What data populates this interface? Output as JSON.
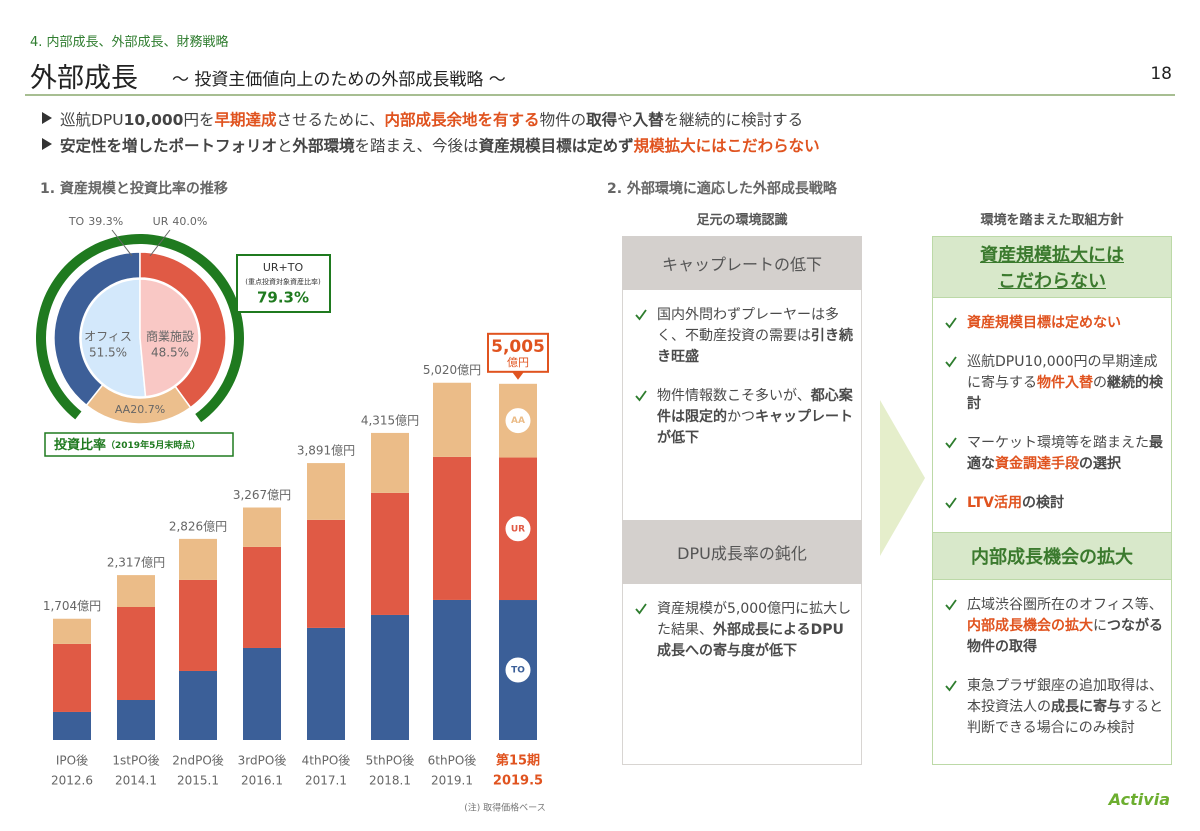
{
  "header": {
    "section": "4. 内部成長、外部成長、財務戦略",
    "title": "外部成長",
    "subtitle": "～ 投資主価値向上のための外部成長戦略 ～",
    "page": "18"
  },
  "bullets": [
    {
      "segments": [
        {
          "text": "巡航DPU",
          "style": "normal"
        },
        {
          "text": "10,000",
          "style": "bold"
        },
        {
          "text": "円を",
          "style": "normal"
        },
        {
          "text": "早期達成",
          "style": "accent"
        },
        {
          "text": "させるために、",
          "style": "normal"
        },
        {
          "text": "内部成長余地を有する",
          "style": "accent"
        },
        {
          "text": "物件の",
          "style": "normal"
        },
        {
          "text": "取得",
          "style": "bold"
        },
        {
          "text": "や",
          "style": "normal"
        },
        {
          "text": "入替",
          "style": "bold"
        },
        {
          "text": "を継続的に検討する",
          "style": "normal"
        }
      ]
    },
    {
      "segments": [
        {
          "text": "安定性を増したポートフォリオ",
          "style": "bold"
        },
        {
          "text": "と",
          "style": "normal"
        },
        {
          "text": "外部環境",
          "style": "bold"
        },
        {
          "text": "を踏まえ、今後は",
          "style": "normal"
        },
        {
          "text": "資産規模目標は定めず",
          "style": "bold"
        },
        {
          "text": "規模拡大にはこだわらない",
          "style": "accent"
        }
      ]
    }
  ],
  "left_section_title": "1. 資産規模と投資比率の推移",
  "chart_data": [
    {
      "type": "donut",
      "inner": {
        "categories": [
          "オフィス",
          "商業施設"
        ],
        "values": [
          51.5,
          48.5
        ],
        "value_labels": [
          "51.5%",
          "48.5%"
        ],
        "colors": [
          "#d3e8fb",
          "#f9c8c5"
        ]
      },
      "outer": {
        "categories": [
          "TO",
          "UR",
          "AA"
        ],
        "values": [
          39.3,
          40.0,
          20.7
        ],
        "value_labels": [
          "39.3%",
          "40.0%",
          "20.7%"
        ],
        "colors": [
          "#3d5f98",
          "#e05a45",
          "#ecbf8d"
        ]
      },
      "highlight": {
        "label": "UR+TO",
        "sublabel": "(重点投資対象資産比率)",
        "value": 79.3,
        "value_label": "79.3%",
        "color": "#1f7a1f"
      },
      "caption": "投資比率",
      "caption_note": "（2019年5月末時点）"
    },
    {
      "type": "stacked_bar",
      "categories": [
        "IPO後",
        "1stPO後",
        "2ndPO後",
        "3rdPO後",
        "4thPO後",
        "5thPO後",
        "6thPO後",
        "第15期"
      ],
      "dates": [
        "2012.6",
        "2014.1",
        "2015.1",
        "2016.1",
        "2017.1",
        "2018.1",
        "2019.1",
        "2019.5"
      ],
      "series": [
        {
          "name": "TO",
          "color": "#3b5f98",
          "values": [
            394,
            562,
            970,
            1293,
            1575,
            1757,
            1968,
            1967
          ]
        },
        {
          "name": "UR",
          "color": "#e05a45",
          "values": [
            956,
            1307,
            1279,
            1420,
            1518,
            1715,
            2010,
            2002
          ]
        },
        {
          "name": "AA",
          "color": "#ebbc88",
          "values": [
            354,
            448,
            577,
            554,
            798,
            843,
            1042,
            1036
          ]
        }
      ],
      "totals": [
        1704,
        2317,
        2826,
        3267,
        3891,
        4315,
        5020,
        5005
      ],
      "total_labels": [
        "1,704億円",
        "2,317億円",
        "2,826億円",
        "3,267億円",
        "3,891億円",
        "4,315億円",
        "5,020億円",
        "5,005"
      ],
      "highlight_index": 7,
      "highlight_unit": "億円",
      "highlight_color": "#e0531f",
      "ylim": [
        0,
        6000
      ]
    }
  ],
  "right_section": {
    "title": "2. 外部環境に適応した外部成長戦略",
    "columns": [
      {
        "heading": "足元の環境認識",
        "boxes": [
          {
            "title_lines": [
              "キャップレートの低下"
            ],
            "underline": false,
            "items": [
              {
                "segments": [
                  {
                    "text": "国内外問わずプレーヤーは多く、不動産投資の需要は",
                    "style": "normal"
                  },
                  {
                    "text": "引き続き旺盛",
                    "style": "bold"
                  }
                ]
              },
              {
                "segments": [
                  {
                    "text": "物件情報数こそ多いが、",
                    "style": "normal"
                  },
                  {
                    "text": "都心案件は限定的",
                    "style": "bold"
                  },
                  {
                    "text": "かつ",
                    "style": "normal"
                  },
                  {
                    "text": "キャップレートが低下",
                    "style": "bold"
                  }
                ]
              }
            ]
          },
          {
            "title_lines": [
              "DPU成長率の鈍化"
            ],
            "underline": false,
            "items": [
              {
                "segments": [
                  {
                    "text": "資産規模が5,000億円に拡大した結果、",
                    "style": "normal"
                  },
                  {
                    "text": "外部成長によるDPU成長への寄与度が低下",
                    "style": "bold"
                  }
                ]
              }
            ]
          }
        ]
      },
      {
        "heading": "環境を踏まえた取組方針",
        "boxes": [
          {
            "title_lines": [
              "資産規模拡大には",
              "こだわらない"
            ],
            "underline": true,
            "items": [
              {
                "segments": [
                  {
                    "text": "資産規模目標は定めない",
                    "style": "accent"
                  }
                ]
              },
              {
                "segments": [
                  {
                    "text": "巡航DPU10,000円の早期達成に寄与する",
                    "style": "normal"
                  },
                  {
                    "text": "物件入替",
                    "style": "accent"
                  },
                  {
                    "text": "の",
                    "style": "normal"
                  },
                  {
                    "text": "継続的検討",
                    "style": "bold"
                  }
                ]
              },
              {
                "segments": [
                  {
                    "text": "マーケット環境等を踏まえた",
                    "style": "normal"
                  },
                  {
                    "text": "最適な",
                    "style": "bold"
                  },
                  {
                    "text": "資金調達手段",
                    "style": "accent"
                  },
                  {
                    "text": "の選択",
                    "style": "bold"
                  }
                ]
              },
              {
                "segments": [
                  {
                    "text": "LTV活用",
                    "style": "accent"
                  },
                  {
                    "text": "の検討",
                    "style": "bold"
                  }
                ]
              }
            ]
          },
          {
            "title_lines": [
              "内部成長機会の拡大"
            ],
            "underline": false,
            "items": [
              {
                "segments": [
                  {
                    "text": "広域渋谷圏所在のオフィス等、",
                    "style": "normal"
                  },
                  {
                    "text": "内部成長機会の拡大",
                    "style": "accent"
                  },
                  {
                    "text": "に",
                    "style": "normal"
                  },
                  {
                    "text": "つながる物件の取得",
                    "style": "bold"
                  }
                ]
              },
              {
                "segments": [
                  {
                    "text": "東急プラザ銀座の追加取得は、本投資法人の",
                    "style": "normal"
                  },
                  {
                    "text": "成長に寄与",
                    "style": "bold"
                  },
                  {
                    "text": "すると判断できる場合にのみ検討",
                    "style": "normal"
                  }
                ]
              }
            ]
          }
        ]
      }
    ]
  },
  "note": "(注) 取得価格ベース",
  "logo": "Activia"
}
